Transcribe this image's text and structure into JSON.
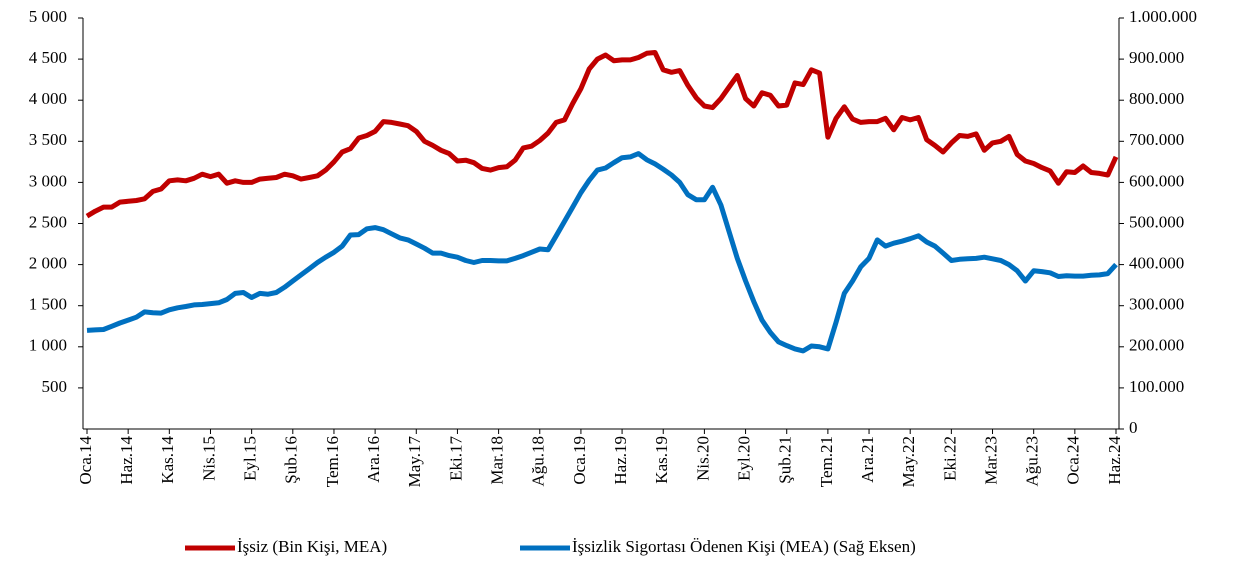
{
  "chart_data": {
    "type": "line",
    "categories": [
      "Oca.14",
      null,
      null,
      null,
      null,
      "Haz.14",
      null,
      null,
      null,
      null,
      "Kas.14",
      null,
      null,
      null,
      null,
      "Nis.15",
      null,
      null,
      null,
      null,
      "Eyl.15",
      null,
      null,
      null,
      null,
      "Şub.16",
      null,
      null,
      null,
      null,
      "Tem.16",
      null,
      null,
      null,
      null,
      "Ara.16",
      null,
      null,
      null,
      null,
      "May.17",
      null,
      null,
      null,
      null,
      "Eki.17",
      null,
      null,
      null,
      null,
      "Mar.18",
      null,
      null,
      null,
      null,
      "Ağu.18",
      null,
      null,
      null,
      null,
      "Oca.19",
      null,
      null,
      null,
      null,
      "Haz.19",
      null,
      null,
      null,
      null,
      "Kas.19",
      null,
      null,
      null,
      null,
      "Nis.20",
      null,
      null,
      null,
      null,
      "Eyl.20",
      null,
      null,
      null,
      null,
      "Şub.21",
      null,
      null,
      null,
      null,
      "Tem.21",
      null,
      null,
      null,
      null,
      "Ara.21",
      null,
      null,
      null,
      null,
      "May.22",
      null,
      null,
      null,
      null,
      "Eki.22",
      null,
      null,
      null,
      null,
      "Mar.23",
      null,
      null,
      null,
      null,
      "Ağu.23",
      null,
      null,
      null,
      null,
      "Oca.24",
      null,
      null,
      null,
      null,
      "Haz.24"
    ],
    "series": [
      {
        "name": "İşsiz (Bin Kişi, MEA)",
        "color": "#c00000",
        "values": [
          2590,
          2650,
          2700,
          2700,
          2760,
          2770,
          2780,
          2800,
          2890,
          2920,
          3020,
          3030,
          3020,
          3050,
          3100,
          3070,
          3100,
          2990,
          3020,
          3000,
          3000,
          3040,
          3050,
          3060,
          3100,
          3080,
          3040,
          3060,
          3080,
          3150,
          3250,
          3370,
          3410,
          3540,
          3570,
          3620,
          3740,
          3730,
          3710,
          3690,
          3620,
          3500,
          3450,
          3390,
          3350,
          3260,
          3270,
          3240,
          3170,
          3150,
          3180,
          3190,
          3270,
          3420,
          3440,
          3510,
          3600,
          3730,
          3760,
          3960,
          4140,
          4380,
          4500,
          4550,
          4480,
          4490,
          4490,
          4520,
          4570,
          4580,
          4370,
          4340,
          4360,
          4180,
          4030,
          3930,
          3910,
          4020,
          4160,
          4300,
          4020,
          3930,
          4090,
          4060,
          3930,
          3940,
          4210,
          4190,
          4370,
          4330,
          3550,
          3780,
          3920,
          3770,
          3730,
          3740,
          3740,
          3780,
          3640,
          3790,
          3760,
          3790,
          3520,
          3450,
          3370,
          3480,
          3570,
          3560,
          3590,
          3390,
          3480,
          3500,
          3560,
          3340,
          3260,
          3230,
          3180,
          3140,
          2990,
          3130,
          3120,
          3200,
          3120,
          3110,
          3090,
          3310
        ]
      },
      {
        "name": "İşsizlik Sigortası Ödenen Kişi (MEA) (Sağ Eksen)",
        "color": "#0070c0",
        "axis": "y2",
        "values": [
          240000,
          241000,
          242000,
          250000,
          258000,
          265000,
          272000,
          285000,
          283000,
          282000,
          290000,
          295000,
          298000,
          302000,
          303000,
          305000,
          307000,
          315000,
          330000,
          332000,
          320000,
          330000,
          328000,
          332000,
          345000,
          360000,
          375000,
          390000,
          405000,
          418000,
          430000,
          445000,
          472000,
          473000,
          487000,
          490000,
          485000,
          475000,
          465000,
          460000,
          450000,
          440000,
          428000,
          428000,
          422000,
          418000,
          410000,
          405000,
          410000,
          410000,
          409000,
          409000,
          415000,
          422000,
          430000,
          438000,
          436000,
          470000,
          505000,
          540000,
          575000,
          605000,
          630000,
          635000,
          648000,
          660000,
          662000,
          670000,
          655000,
          645000,
          632000,
          618000,
          600000,
          570000,
          558000,
          558000,
          588000,
          545000,
          480000,
          415000,
          360000,
          310000,
          265000,
          235000,
          212000,
          203000,
          195000,
          190000,
          202000,
          200000,
          195000,
          260000,
          330000,
          360000,
          395000,
          415000,
          460000,
          445000,
          452000,
          457000,
          463000,
          470000,
          455000,
          445000,
          428000,
          410000,
          413000,
          414000,
          415000,
          418000,
          414000,
          410000,
          400000,
          385000,
          360000,
          385000,
          383000,
          380000,
          371000,
          373000,
          372000,
          372000,
          374000,
          375000,
          378000,
          400000
        ]
      }
    ],
    "ylim": [
      0,
      5000
    ],
    "yticks": [
      500,
      {
        "value": 1000,
        "label": "1 000"
      },
      {
        "value": 1500,
        "label": "1 500"
      },
      {
        "value": 2000,
        "label": "2 000"
      },
      {
        "value": 2500,
        "label": "2 500"
      },
      {
        "value": 3000,
        "label": "3 000"
      },
      {
        "value": 3500,
        "label": "3 500"
      },
      {
        "value": 4000,
        "label": "4 000"
      },
      {
        "value": 4500,
        "label": "4 500"
      },
      {
        "value": 5000,
        "label": "5 000"
      }
    ],
    "y2lim": [
      0,
      1000000
    ],
    "y2ticks": [
      0,
      {
        "value": 100000,
        "label": "100.000"
      },
      {
        "value": 200000,
        "label": "200.000"
      },
      {
        "value": 300000,
        "label": "300.000"
      },
      {
        "value": 400000,
        "label": "400.000"
      },
      {
        "value": 500000,
        "label": "500.000"
      },
      {
        "value": 600000,
        "label": "600.000"
      },
      {
        "value": 700000,
        "label": "700.000"
      },
      {
        "value": 800000,
        "label": "800.000"
      },
      {
        "value": 900000,
        "label": "900.000"
      },
      {
        "value": 1000000,
        "label": "1.000.000"
      }
    ],
    "legend": "bottom"
  }
}
